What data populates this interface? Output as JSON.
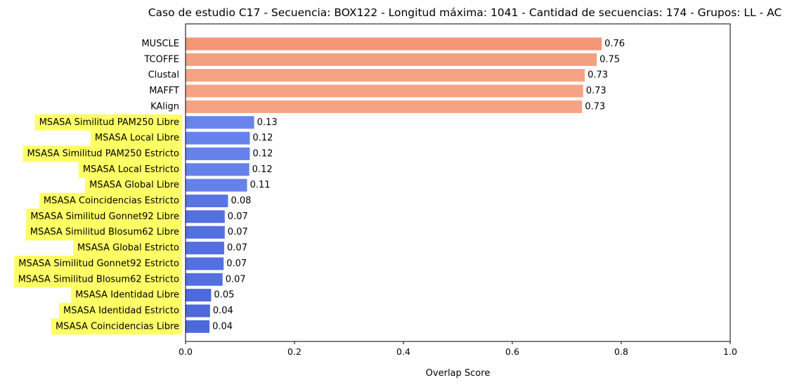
{
  "chart_data": {
    "type": "bar",
    "orientation": "horizontal",
    "title": "Caso de estudio C17 - Secuencia: BOX122 - Longitud máxima: 1041 - Cantidad de secuencias: 174 - Grupos: LL - AC",
    "xlabel": "Overlap Score",
    "ylabel": "",
    "xlim": [
      0,
      1.0
    ],
    "xticks": [
      "0.0",
      "0.2",
      "0.4",
      "0.6",
      "0.8",
      "1.0"
    ],
    "grid": false,
    "categories": [
      "MUSCLE",
      "TCOFFE",
      "Clustal",
      "MAFFT",
      "KAlign",
      "MSASA Similitud PAM250 Libre",
      "MSASA Local Libre",
      "MSASA Similitud PAM250 Estricto",
      "MSASA Local Estricto",
      "MSASA Global Libre",
      "MSASA Coincidencias Estricto",
      "MSASA Similitud Gonnet92 Libre",
      "MSASA Similitud Blosum62 Libre",
      "MSASA Global Estricto",
      "MSASA Similitud Gonnet92 Estricto",
      "MSASA Similitud Blosum62 Estricto",
      "MSASA Identidad Libre",
      "MSASA Identidad Estricto",
      "MSASA Coincidencias Libre"
    ],
    "values": [
      0.764,
      0.755,
      0.733,
      0.73,
      0.728,
      0.126,
      0.118,
      0.118,
      0.117,
      0.113,
      0.078,
      0.072,
      0.072,
      0.071,
      0.07,
      0.068,
      0.047,
      0.045,
      0.044
    ],
    "value_labels": [
      "0.76",
      "0.75",
      "0.73",
      "0.73",
      "0.73",
      "0.13",
      "0.12",
      "0.12",
      "0.12",
      "0.11",
      "0.08",
      "0.07",
      "0.07",
      "0.07",
      "0.07",
      "0.07",
      "0.05",
      "0.04",
      "0.04"
    ],
    "highlighted": [
      false,
      false,
      false,
      false,
      false,
      true,
      true,
      true,
      true,
      true,
      true,
      true,
      true,
      true,
      true,
      true,
      true,
      true,
      true
    ],
    "bar_colors": [
      "#f29676",
      "#f3a080",
      "#f5a383",
      "#f5a383",
      "#f5a383",
      "#6984ec",
      "#6682ea",
      "#6682ea",
      "#6682ea",
      "#6682ea",
      "#5875e2",
      "#5470e0",
      "#5470e0",
      "#5470e0",
      "#5470e0",
      "#5470e0",
      "#4e69dc",
      "#4d68db",
      "#4d68db"
    ],
    "highlight_color": "#ffff66"
  }
}
